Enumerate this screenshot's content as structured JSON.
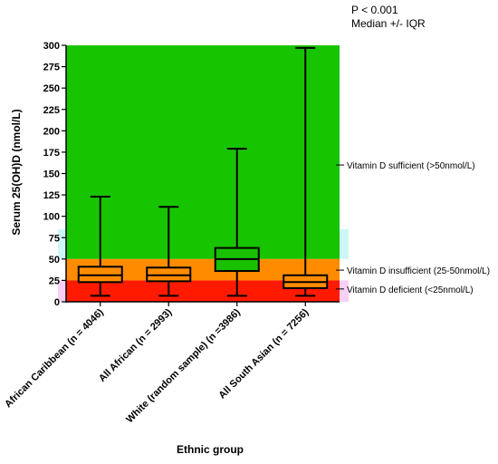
{
  "stats": {
    "p_value": "P < 0.001",
    "summary": "Median +/- IQR"
  },
  "colors": {
    "sufficient": "#17c400",
    "insufficient": "#ff8c00",
    "deficient": "#ff1a00",
    "box_orange": "#ff8c00",
    "box_green": "#18c000",
    "cyan_band": "#cdf7f7",
    "pink_band": "#f9d0f5"
  },
  "chart_data": {
    "type": "box",
    "title": "",
    "xlabel": "Ethnic group",
    "ylabel": "Serum 25(OH)D (nmol/L)",
    "ylim": [
      0,
      300
    ],
    "yticks": [
      0,
      25,
      50,
      75,
      100,
      125,
      150,
      175,
      200,
      225,
      250,
      275,
      300
    ],
    "bands": [
      {
        "from": 50,
        "to": 300,
        "label": "Vitamin D sufficient (>50nmol/L)",
        "label_value": 160,
        "color": "#17c400"
      },
      {
        "from": 25,
        "to": 50,
        "label": "Vitamin D insufficient (25-50nmol/L)",
        "label_value": 37,
        "color": "#ff8c00"
      },
      {
        "from": 0,
        "to": 25,
        "label": "Vitamin D deficient (<25nmol/L)",
        "label_value": 15,
        "color": "#ff1a00"
      }
    ],
    "groups": [
      {
        "label": "African Caribbean (n = 4046)",
        "min": 7,
        "q1": 23,
        "median": 31,
        "q3": 41,
        "max": 123,
        "box_color": "#ff8c00"
      },
      {
        "label": "All African (n = 2993)",
        "min": 7,
        "q1": 24,
        "median": 31,
        "q3": 40,
        "max": 111,
        "box_color": "#ff8c00"
      },
      {
        "label": "White (random sample) (n =3986)",
        "min": 7,
        "q1": 36,
        "median": 50,
        "q3": 63,
        "max": 179,
        "box_color": "#18c000"
      },
      {
        "label": "All South Asian (n = 7256)",
        "min": 7,
        "q1": 16,
        "median": 23,
        "q3": 31,
        "max": 297,
        "box_color": "#ff8c00"
      }
    ]
  }
}
